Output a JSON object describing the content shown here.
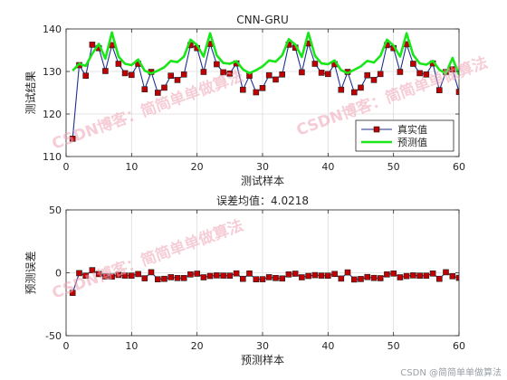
{
  "watermarks": [
    "CSDN博客：简简单单做算法",
    "CSDN博客：简简单单做算法",
    "CSDN博客：简简单单做算法"
  ],
  "footer_text": "CSDN @简简单单做算法",
  "chart_data": [
    {
      "type": "line",
      "title": "CNN-GRU",
      "xlabel": "测试样本",
      "ylabel": "测试结果",
      "xlim": [
        0,
        60
      ],
      "ylim": [
        110,
        140
      ],
      "xticks": [
        0,
        10,
        20,
        30,
        40,
        50,
        60
      ],
      "yticks": [
        110,
        120,
        130,
        140
      ],
      "grid": true,
      "legend_placement": "bottom-right",
      "x": [
        1,
        2,
        3,
        4,
        5,
        6,
        7,
        8,
        9,
        10,
        11,
        12,
        13,
        14,
        15,
        16,
        17,
        18,
        19,
        20,
        21,
        22,
        23,
        24,
        25,
        26,
        27,
        28,
        29,
        30,
        31,
        32,
        33,
        34,
        35,
        36,
        37,
        38,
        39,
        40,
        41,
        42,
        43,
        44,
        45,
        46,
        47,
        48,
        49,
        50,
        51,
        52,
        53,
        54,
        55,
        56,
        57,
        58,
        59,
        60
      ],
      "series": [
        {
          "name": "真实值",
          "color": "#1f2f8f",
          "marker_color": "#c00000",
          "values": [
            114.2,
            131.5,
            129,
            136.3,
            135.5,
            130.1,
            136.2,
            131.8,
            129.6,
            129.2,
            131.8,
            125.8,
            129.9,
            125,
            126.2,
            129,
            128,
            129.3,
            136.2,
            135.5,
            129.9,
            136.5,
            131.7,
            129.8,
            129.5,
            131.9,
            125.7,
            129,
            125.1,
            126.1,
            129.1,
            128.1,
            129.3,
            136.3,
            135.6,
            129.8,
            136.6,
            131.8,
            129.7,
            129.4,
            131.7,
            125.7,
            129.9,
            125.1,
            126.2,
            129.1,
            128,
            129.4,
            136.2,
            135.5,
            129.9,
            136.4,
            131.8,
            129.6,
            129.3,
            131.9,
            125.6,
            129.9,
            130.5,
            125.2
          ]
        },
        {
          "name": "预测值",
          "color": "#19e619",
          "values": [
            130.2,
            131.8,
            131.3,
            134.2,
            136.5,
            133,
            139.2,
            133.5,
            131.8,
            131.5,
            132.8,
            130.2,
            129.5,
            130.2,
            131,
            132.5,
            132.2,
            133.5,
            137.5,
            136.2,
            133.5,
            139,
            133.8,
            132,
            131.8,
            132.4,
            130.5,
            129.6,
            130.3,
            131.2,
            132.6,
            132.3,
            133.8,
            137.6,
            136.3,
            133.4,
            139.1,
            133.7,
            131.9,
            131.7,
            132.6,
            130.3,
            129.6,
            130.4,
            131.2,
            132.5,
            132.1,
            133.7,
            137.5,
            136.1,
            133.5,
            139,
            133.9,
            131.9,
            131.6,
            132.5,
            130.4,
            129.5,
            133.2,
            129.2
          ]
        }
      ]
    },
    {
      "type": "line",
      "title": "误差均值：4.0218",
      "xlabel": "预测样本",
      "ylabel": "预测误差",
      "xlim": [
        0,
        60
      ],
      "ylim": [
        -50,
        50
      ],
      "xticks": [
        0,
        10,
        20,
        30,
        40,
        50,
        60
      ],
      "yticks": [
        -50,
        0,
        50
      ],
      "grid": true,
      "x": [
        1,
        2,
        3,
        4,
        5,
        6,
        7,
        8,
        9,
        10,
        11,
        12,
        13,
        14,
        15,
        16,
        17,
        18,
        19,
        20,
        21,
        22,
        23,
        24,
        25,
        26,
        27,
        28,
        29,
        30,
        31,
        32,
        33,
        34,
        35,
        36,
        37,
        38,
        39,
        40,
        41,
        42,
        43,
        44,
        45,
        46,
        47,
        48,
        49,
        50,
        51,
        52,
        53,
        54,
        55,
        56,
        57,
        58,
        59,
        60
      ],
      "series": [
        {
          "color": "#1f2f8f",
          "marker_color": "#c00000",
          "values": [
            -16,
            -0.3,
            -2.3,
            2.1,
            -1,
            -2.9,
            -3,
            -1.7,
            -2.2,
            -2.3,
            -1,
            -4.4,
            0.4,
            -5.2,
            -4.8,
            -3.5,
            -4.2,
            -4.2,
            -1.3,
            -0.7,
            -3.6,
            -2.5,
            -2.1,
            -2.2,
            -2.3,
            -0.5,
            -4.8,
            -0.6,
            -5.2,
            -5.1,
            -3.5,
            -4.2,
            -4.5,
            -1.3,
            -0.7,
            -3.6,
            -2.5,
            -1.9,
            -2.2,
            -2.3,
            -0.9,
            -4.6,
            0.3,
            -5.3,
            -5,
            -3.4,
            -4.1,
            -4.3,
            -1.3,
            -0.6,
            -3.6,
            -2.6,
            -2.1,
            -2.3,
            -2.3,
            -0.6,
            -4.8,
            0.4,
            -2.7,
            -4
          ]
        }
      ]
    }
  ]
}
